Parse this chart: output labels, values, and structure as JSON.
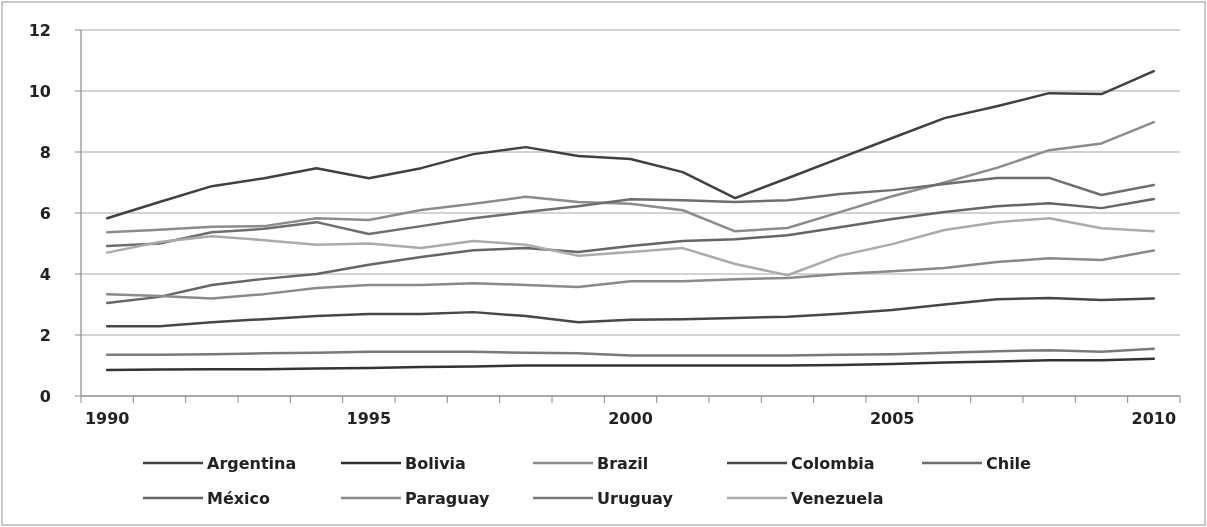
{
  "chart_data": {
    "type": "line",
    "categories": [
      "1990",
      null,
      null,
      null,
      null,
      "1995",
      null,
      null,
      null,
      null,
      "2000",
      null,
      null,
      null,
      null,
      "2005",
      null,
      null,
      null,
      null,
      "2010"
    ],
    "ylim": [
      0,
      12
    ],
    "yticks": [
      0,
      2,
      4,
      6,
      8,
      10,
      12
    ],
    "grid": "y",
    "legend": "bottom",
    "line_style": "solid",
    "marker": "none",
    "series": [
      {
        "name": "Argentina",
        "color": "#404040",
        "values": [
          5.83,
          6.36,
          6.88,
          7.14,
          7.47,
          7.14,
          7.47,
          7.93,
          8.16,
          7.87,
          7.77,
          7.34,
          6.49,
          7.14,
          7.8,
          8.46,
          9.11,
          9.5,
          9.93,
          9.9,
          10.65
        ]
      },
      {
        "name": "Bolivia",
        "color": "#333333",
        "values": [
          0.85,
          0.87,
          0.88,
          0.88,
          0.9,
          0.92,
          0.95,
          0.97,
          1.0,
          1.0,
          1.0,
          1.0,
          1.0,
          1.0,
          1.02,
          1.05,
          1.1,
          1.13,
          1.17,
          1.17,
          1.22
        ]
      },
      {
        "name": "Brazil",
        "color": "#8c8c8c",
        "values": [
          5.37,
          5.45,
          5.55,
          5.57,
          5.83,
          5.77,
          6.1,
          6.3,
          6.53,
          6.36,
          6.3,
          6.09,
          5.4,
          5.51,
          6.03,
          6.55,
          7.0,
          7.48,
          8.06,
          8.28,
          8.98
        ]
      },
      {
        "name": "Colombia",
        "color": "#474747",
        "values": [
          2.29,
          2.29,
          2.42,
          2.52,
          2.62,
          2.69,
          2.69,
          2.75,
          2.62,
          2.42,
          2.5,
          2.52,
          2.56,
          2.6,
          2.7,
          2.82,
          3.0,
          3.17,
          3.21,
          3.15,
          3.2
        ]
      },
      {
        "name": "Chile",
        "color": "#6e6e6e",
        "values": [
          4.92,
          5.0,
          5.37,
          5.48,
          5.7,
          5.31,
          5.57,
          5.83,
          6.03,
          6.22,
          6.45,
          6.42,
          6.36,
          6.42,
          6.62,
          6.75,
          6.95,
          7.15,
          7.15,
          6.59,
          6.92
        ]
      },
      {
        "name": "México",
        "color": "#666666",
        "values": [
          3.05,
          3.25,
          3.64,
          3.84,
          4.0,
          4.3,
          4.56,
          4.78,
          4.85,
          4.72,
          4.92,
          5.08,
          5.14,
          5.27,
          5.53,
          5.8,
          6.03,
          6.22,
          6.32,
          6.16,
          6.46
        ]
      },
      {
        "name": "Paraguay",
        "color": "#8a8a8a",
        "values": [
          3.34,
          3.28,
          3.2,
          3.34,
          3.54,
          3.64,
          3.64,
          3.7,
          3.64,
          3.57,
          3.76,
          3.76,
          3.83,
          3.87,
          4.0,
          4.09,
          4.2,
          4.39,
          4.52,
          4.46,
          4.77
        ]
      },
      {
        "name": "Uruguay",
        "color": "#7a7a7a",
        "values": [
          1.35,
          1.35,
          1.37,
          1.4,
          1.42,
          1.45,
          1.45,
          1.45,
          1.42,
          1.4,
          1.33,
          1.33,
          1.33,
          1.33,
          1.35,
          1.37,
          1.42,
          1.47,
          1.5,
          1.45,
          1.55
        ]
      },
      {
        "name": "Venezuela",
        "color": "#ababab",
        "values": [
          4.7,
          5.05,
          5.24,
          5.11,
          4.96,
          5.0,
          4.85,
          5.08,
          4.96,
          4.6,
          4.72,
          4.85,
          4.33,
          3.96,
          4.6,
          4.98,
          5.44,
          5.7,
          5.83,
          5.5,
          5.4
        ]
      }
    ]
  }
}
